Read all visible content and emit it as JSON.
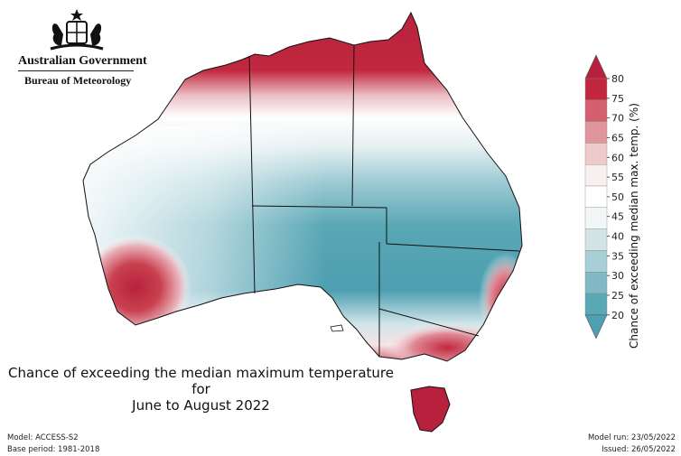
{
  "header": {
    "government": "Australian Government",
    "agency": "Bureau of Meteorology",
    "logo": "commonwealth-coat-of-arms"
  },
  "map": {
    "title": "Chance of exceeding the median maximum temperature for\nJune to August 2022",
    "colors": {
      "hot": "#b8213d",
      "mid": "#ffffff",
      "cool": "#4d9fb1",
      "coast": "#111111"
    }
  },
  "legend": {
    "title": "Chance of exceeding median max. temp. (%)",
    "ticks": [
      "80",
      "75",
      "70",
      "65",
      "60",
      "55",
      "50",
      "45",
      "40",
      "35",
      "30",
      "25",
      "20"
    ],
    "colors": [
      "#c1283f",
      "#d4606f",
      "#e0949c",
      "#eecaca",
      "#f8f0f0",
      "#ffffff",
      "#f2f6f7",
      "#d4e3e6",
      "#a9cfd6",
      "#80b9c4",
      "#5aa7b5"
    ],
    "top_arrow_color": "#b8213d",
    "bottom_arrow_color": "#4d9fb1"
  },
  "footer": {
    "model": "Model: ACCESS-S2",
    "base_period": "Base period: 1981-2018",
    "model_run": "Model run: 23/05/2022",
    "issued": "Issued: 26/05/2022"
  }
}
